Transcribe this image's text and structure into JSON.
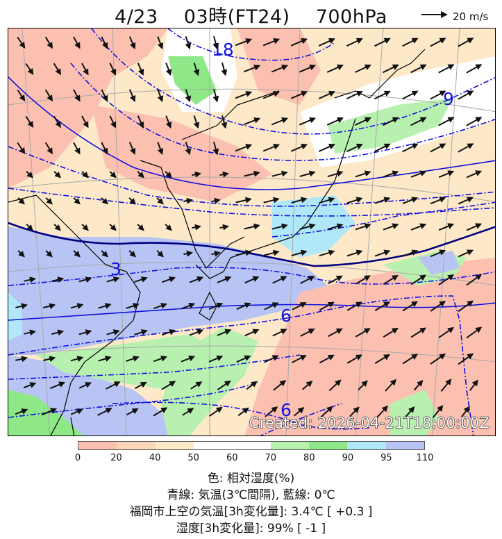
{
  "header": {
    "date": "4/23",
    "time": "03時(FT24)",
    "level": "700hPa"
  },
  "wind_legend": {
    "label": "20 m/s"
  },
  "map": {
    "created": "Created: 2026-04-21T18:00:00Z",
    "contour_labels": [
      "18",
      "9",
      "3",
      "6",
      "6"
    ],
    "colors": {
      "contour": "#1010e0",
      "zero_line": "#000080",
      "arrow": "#111111"
    }
  },
  "colorbar": {
    "ticks": [
      "0",
      "20",
      "40",
      "50",
      "60",
      "70",
      "80",
      "90",
      "95",
      "110"
    ],
    "colors": [
      "#fbc0b0",
      "#fcd6b8",
      "#fde8c8",
      "#ffffff",
      "#ffffff",
      "#b8f0b0",
      "#8ee888",
      "#b0e8f8",
      "#b8c4f4"
    ]
  },
  "info": {
    "line1": "色: 相対湿度(%)",
    "line2": "青線: 気温(3℃間隔), 藍線: 0℃",
    "line3": "福岡市上空の気温[3h変化量]: 3.4℃ [ +0.3 ]",
    "line4": "湿度[3h変化量]: 99% [ -1 ]"
  }
}
